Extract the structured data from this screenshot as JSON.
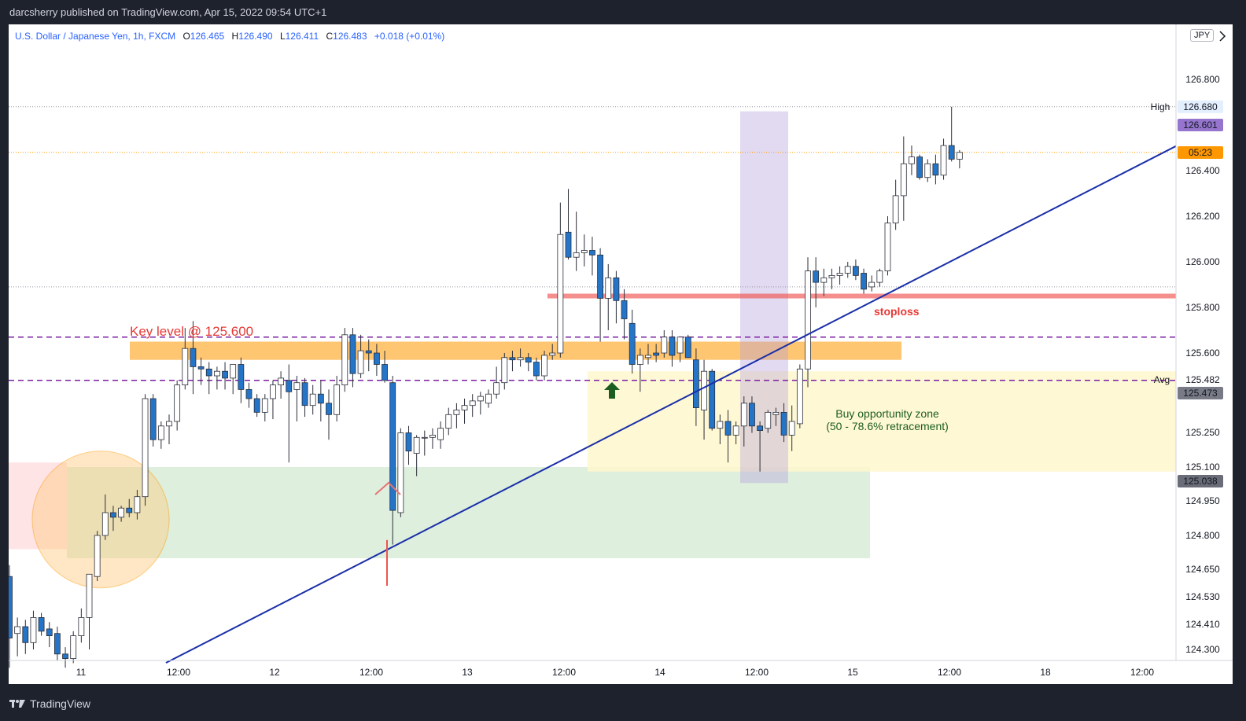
{
  "header": {
    "publisher_line": "darcsherry published on TradingView.com, Apr 15, 2022 09:54 UTC+1"
  },
  "legend": {
    "symbol": "U.S. Dollar / Japanese Yen, 1h, FXCM",
    "o_label": "O",
    "o_value": "126.465",
    "h_label": "H",
    "h_value": "126.490",
    "l_label": "L",
    "l_value": "126.411",
    "c_label": "C",
    "c_value": "126.483",
    "change": "+0.018 (+0.01%)"
  },
  "currency": "JPY",
  "footer": {
    "brand": "TradingView"
  },
  "colors": {
    "up_body": "#ffffff",
    "down_body": "#2474c8",
    "wick": "#2a2e39",
    "trendline": "#1a2fa8",
    "key_level": "#ffa726",
    "stoploss": "#ef5350",
    "green_zone": "#b5dcb5",
    "yellow_zone": "#fff7cc",
    "purple_box": "#b39ddb",
    "dashed_purple": "#7b1fa2",
    "badge_purple": "#9575cd",
    "badge_orange": "#ff9800",
    "badge_grey": "#787b86"
  },
  "chart_data": {
    "type": "candlestick",
    "symbol": "USDJPY",
    "timeframe": "1h",
    "y_axis": {
      "ticks": [
        "126.800",
        "126.600",
        "126.400",
        "126.200",
        "126.000",
        "125.800",
        "125.600",
        "125.482",
        "125.250",
        "125.100",
        "124.950",
        "124.800",
        "124.650",
        "124.530",
        "124.410",
        "124.300"
      ]
    },
    "x_axis": {
      "ticks": [
        "11",
        "12:00",
        "12",
        "12:00",
        "13",
        "12:00",
        "14",
        "12:00",
        "15",
        "12:00",
        "18",
        "12:00"
      ]
    },
    "price_markers": {
      "high_label": "High",
      "high_value": "126.680",
      "last_value": "126.601",
      "countdown": "05:23",
      "avg_label": "Avg",
      "avg_value": "125.482",
      "level_value": "125.473",
      "box_low_value": "125.038"
    },
    "annotations": {
      "key_level": "Key level @ 125.600",
      "stoploss": "stoploss",
      "zone_title": "Buy opportunity zone",
      "zone_subtitle": "(50 - 78.6% retracement)"
    },
    "candles": [
      [
        124.62,
        124.67,
        124.22,
        124.35
      ],
      [
        124.37,
        124.44,
        124.27,
        124.4
      ],
      [
        124.4,
        124.43,
        124.28,
        124.33
      ],
      [
        124.33,
        124.47,
        124.3,
        124.44
      ],
      [
        124.44,
        124.46,
        124.36,
        124.38
      ],
      [
        124.39,
        124.42,
        124.31,
        124.36
      ],
      [
        124.37,
        124.4,
        124.25,
        124.28
      ],
      [
        124.28,
        124.31,
        124.22,
        124.26
      ],
      [
        124.26,
        124.38,
        124.24,
        124.36
      ],
      [
        124.36,
        124.48,
        124.33,
        124.44
      ],
      [
        124.44,
        124.62,
        124.3,
        124.63
      ],
      [
        124.62,
        124.82,
        124.6,
        124.8
      ],
      [
        124.8,
        124.98,
        124.78,
        124.9
      ],
      [
        124.9,
        124.93,
        124.82,
        124.88
      ],
      [
        124.88,
        124.93,
        124.86,
        124.92
      ],
      [
        124.92,
        124.96,
        124.88,
        124.9
      ],
      [
        124.9,
        125.0,
        124.87,
        124.97
      ],
      [
        124.97,
        125.42,
        124.93,
        125.4
      ],
      [
        125.4,
        125.42,
        125.19,
        125.22
      ],
      [
        125.22,
        125.3,
        125.18,
        125.28
      ],
      [
        125.28,
        125.33,
        125.2,
        125.3
      ],
      [
        125.3,
        125.48,
        125.26,
        125.46
      ],
      [
        125.46,
        125.71,
        125.44,
        125.62
      ],
      [
        125.62,
        125.74,
        125.42,
        125.54
      ],
      [
        125.54,
        125.58,
        125.46,
        125.53
      ],
      [
        125.53,
        125.56,
        125.42,
        125.5
      ],
      [
        125.5,
        125.54,
        125.44,
        125.52
      ],
      [
        125.52,
        125.56,
        125.44,
        125.49
      ],
      [
        125.49,
        125.54,
        125.42,
        125.55
      ],
      [
        125.55,
        125.58,
        125.38,
        125.44
      ],
      [
        125.44,
        125.47,
        125.36,
        125.4
      ],
      [
        125.4,
        125.42,
        125.32,
        125.34
      ],
      [
        125.34,
        125.42,
        125.3,
        125.4
      ],
      [
        125.4,
        125.48,
        125.31,
        125.46
      ],
      [
        125.46,
        125.52,
        125.4,
        125.49
      ],
      [
        125.48,
        125.55,
        125.12,
        125.43
      ],
      [
        125.44,
        125.5,
        125.3,
        125.47
      ],
      [
        125.47,
        125.49,
        125.32,
        125.37
      ],
      [
        125.37,
        125.46,
        125.33,
        125.42
      ],
      [
        125.42,
        125.48,
        125.3,
        125.38
      ],
      [
        125.38,
        125.44,
        125.22,
        125.33
      ],
      [
        125.33,
        125.5,
        125.3,
        125.46
      ],
      [
        125.46,
        125.71,
        125.43,
        125.68
      ],
      [
        125.68,
        125.71,
        125.45,
        125.51
      ],
      [
        125.51,
        125.68,
        125.49,
        125.61
      ],
      [
        125.61,
        125.66,
        125.52,
        125.6
      ],
      [
        125.6,
        125.64,
        125.5,
        125.55
      ],
      [
        125.55,
        125.61,
        125.47,
        125.48
      ],
      [
        125.47,
        125.5,
        124.76,
        124.91
      ],
      [
        124.9,
        125.27,
        124.88,
        125.25
      ],
      [
        125.25,
        125.28,
        125.11,
        125.17
      ],
      [
        125.16,
        125.24,
        125.06,
        125.23
      ],
      [
        125.23,
        125.26,
        125.15,
        125.23
      ],
      [
        125.23,
        125.27,
        125.18,
        125.24
      ],
      [
        125.22,
        125.3,
        125.18,
        125.27
      ],
      [
        125.27,
        125.36,
        125.24,
        125.33
      ],
      [
        125.33,
        125.38,
        125.27,
        125.35
      ],
      [
        125.35,
        125.4,
        125.29,
        125.37
      ],
      [
        125.37,
        125.42,
        125.32,
        125.39
      ],
      [
        125.39,
        125.43,
        125.33,
        125.41
      ],
      [
        125.38,
        125.44,
        125.36,
        125.42
      ],
      [
        125.42,
        125.54,
        125.4,
        125.47
      ],
      [
        125.47,
        125.6,
        125.44,
        125.58
      ],
      [
        125.58,
        125.61,
        125.52,
        125.57
      ],
      [
        125.57,
        125.62,
        125.54,
        125.58
      ],
      [
        125.58,
        125.6,
        125.52,
        125.56
      ],
      [
        125.56,
        125.58,
        125.48,
        125.5
      ],
      [
        125.5,
        125.61,
        125.48,
        125.59
      ],
      [
        125.59,
        125.64,
        125.57,
        125.6
      ],
      [
        125.6,
        126.26,
        125.58,
        126.12
      ],
      [
        126.13,
        126.32,
        126.01,
        126.02
      ],
      [
        126.02,
        126.22,
        125.96,
        126.04
      ],
      [
        126.04,
        126.12,
        125.98,
        126.05
      ],
      [
        126.05,
        126.11,
        125.94,
        126.03
      ],
      [
        126.03,
        126.06,
        125.65,
        125.84
      ],
      [
        125.84,
        125.99,
        125.7,
        125.93
      ],
      [
        125.93,
        125.96,
        125.73,
        125.83
      ],
      [
        125.83,
        125.88,
        125.66,
        125.75
      ],
      [
        125.73,
        125.79,
        125.51,
        125.55
      ],
      [
        125.55,
        125.62,
        125.43,
        125.59
      ],
      [
        125.58,
        125.64,
        125.55,
        125.59
      ],
      [
        125.6,
        125.64,
        125.56,
        125.59
      ],
      [
        125.6,
        125.7,
        125.58,
        125.67
      ],
      [
        125.67,
        125.7,
        125.54,
        125.59
      ],
      [
        125.6,
        125.67,
        125.56,
        125.67
      ],
      [
        125.67,
        125.68,
        125.58,
        125.58
      ],
      [
        125.57,
        125.62,
        125.28,
        125.36
      ],
      [
        125.35,
        125.57,
        125.22,
        125.52
      ],
      [
        125.52,
        125.53,
        125.26,
        125.27
      ],
      [
        125.27,
        125.33,
        125.2,
        125.3
      ],
      [
        125.3,
        125.35,
        125.12,
        125.24
      ],
      [
        125.24,
        125.3,
        125.2,
        125.28
      ],
      [
        125.28,
        125.41,
        125.19,
        125.38
      ],
      [
        125.38,
        125.41,
        125.25,
        125.28
      ],
      [
        125.28,
        125.3,
        125.08,
        125.26
      ],
      [
        125.27,
        125.35,
        125.25,
        125.34
      ],
      [
        125.33,
        125.36,
        125.28,
        125.34
      ],
      [
        125.34,
        125.38,
        125.21,
        125.24
      ],
      [
        125.24,
        125.37,
        125.17,
        125.3
      ],
      [
        125.29,
        125.55,
        125.27,
        125.53
      ],
      [
        125.53,
        126.02,
        125.45,
        125.96
      ],
      [
        125.96,
        126.02,
        125.8,
        125.91
      ],
      [
        125.91,
        125.97,
        125.85,
        125.93
      ],
      [
        125.93,
        125.97,
        125.88,
        125.94
      ],
      [
        125.94,
        125.98,
        125.9,
        125.95
      ],
      [
        125.95,
        126.0,
        125.93,
        125.98
      ],
      [
        125.98,
        126.01,
        125.92,
        125.94
      ],
      [
        125.95,
        125.97,
        125.86,
        125.88
      ],
      [
        125.89,
        125.94,
        125.87,
        125.91
      ],
      [
        125.91,
        125.97,
        125.89,
        125.96
      ],
      [
        125.96,
        126.2,
        125.94,
        126.17
      ],
      [
        126.17,
        126.36,
        126.14,
        126.29
      ],
      [
        126.29,
        126.55,
        126.18,
        126.43
      ],
      [
        126.43,
        126.51,
        126.38,
        126.46
      ],
      [
        126.46,
        126.47,
        126.36,
        126.37
      ],
      [
        126.37,
        126.45,
        126.35,
        126.43
      ],
      [
        126.43,
        126.47,
        126.34,
        126.38
      ],
      [
        126.38,
        126.54,
        126.36,
        126.51
      ],
      [
        126.51,
        126.68,
        126.44,
        126.45
      ],
      [
        126.45,
        126.49,
        126.41,
        126.48
      ]
    ]
  }
}
